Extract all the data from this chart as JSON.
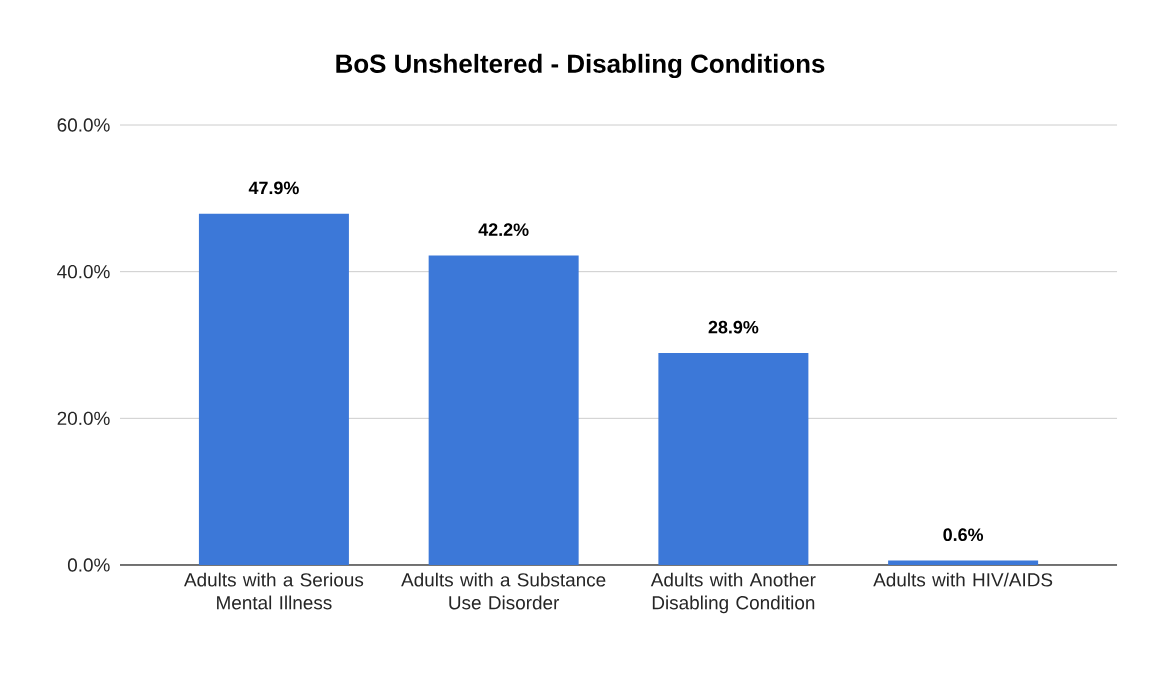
{
  "chart_data": {
    "type": "bar",
    "title": "BoS Unsheltered - Disabling Conditions",
    "categories": [
      "Adults with a Serious Mental Illness",
      "Adults with a Substance Use Disorder",
      "Adults with Another Disabling Condition",
      "Adults with HIV/AIDS"
    ],
    "values": [
      47.9,
      42.2,
      28.9,
      0.6
    ],
    "value_labels": [
      "47.9%",
      "42.2%",
      "28.9%",
      "0.6%"
    ],
    "color": "#3c78d8",
    "ylim": [
      0,
      60
    ],
    "yticks": [
      {
        "value": 0,
        "label": "0.0%"
      },
      {
        "value": 20,
        "label": "20.0%"
      },
      {
        "value": 40,
        "label": "40.0%"
      },
      {
        "value": 60,
        "label": "60.0%"
      }
    ],
    "grid": "y"
  }
}
